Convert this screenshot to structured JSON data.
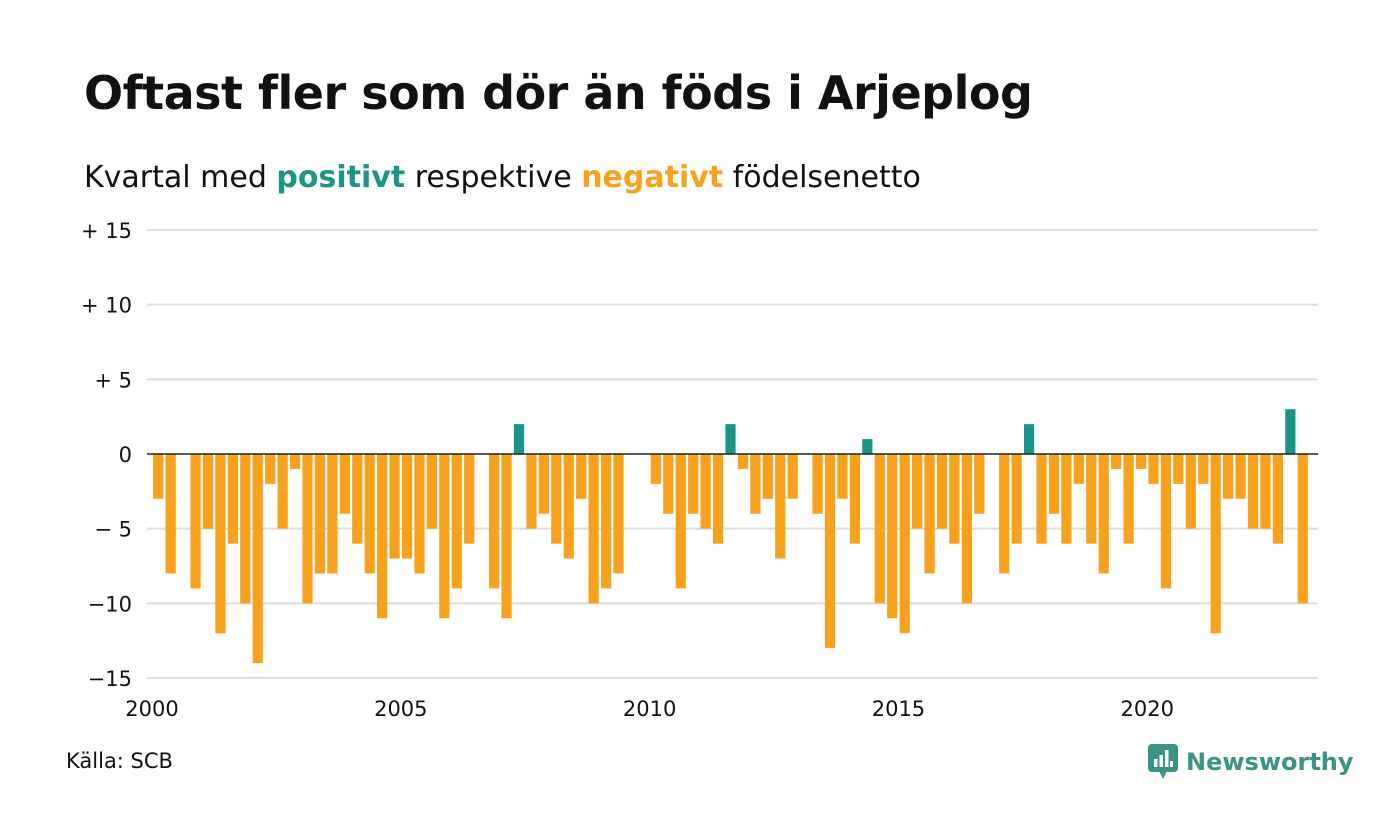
{
  "header": {
    "title": "Oftast fler som dör än föds i Arjeplog",
    "subtitle_prefix": "Kvartal med ",
    "subtitle_positive": "positivt",
    "subtitle_middle": " respektive ",
    "subtitle_negative": "negativt",
    "subtitle_suffix": " födelsenetto"
  },
  "footer": {
    "source": "Källa: SCB",
    "brand": "Newsworthy"
  },
  "colors": {
    "positive": "#1b9587",
    "negative": "#f7a11d",
    "grid": "#dddddd",
    "brand": "#3a9385",
    "text": "#111111"
  },
  "icons": {
    "logo": "chart-speech-bubble-icon"
  },
  "chart_data": {
    "type": "bar",
    "title": "Oftast fler som dör än föds i Arjeplog",
    "ylim": [
      -15,
      15
    ],
    "yticks": [
      15,
      10,
      5,
      0,
      -5,
      -10,
      -15
    ],
    "ytick_labels": [
      "+ 15",
      "+ 10",
      "+  5",
      "0",
      "− 5",
      "−10",
      "−15"
    ],
    "xticks": [
      2000,
      2005,
      2010,
      2015,
      2020
    ],
    "xtick_labels": [
      "2000",
      "2005",
      "2010",
      "2015",
      "2020"
    ],
    "xlim": [
      2000,
      2023.25
    ],
    "grid": true,
    "legend": "none",
    "start_year": 2000,
    "periods_per_year": 4,
    "values": [
      -3,
      -8,
      0,
      -9,
      -5,
      -12,
      -6,
      -10,
      -14,
      -2,
      -5,
      -1,
      -10,
      -8,
      -8,
      -4,
      -6,
      -8,
      -11,
      -7,
      -7,
      -8,
      -5,
      -11,
      -9,
      -6,
      0,
      -9,
      -11,
      2,
      -5,
      -4,
      -6,
      -7,
      -3,
      -10,
      -9,
      -8,
      0,
      0,
      -2,
      -4,
      -9,
      -4,
      -5,
      -6,
      2,
      -1,
      -4,
      -3,
      -7,
      -3,
      0,
      -4,
      -13,
      -3,
      -6,
      1,
      -10,
      -11,
      -12,
      -5,
      -8,
      -5,
      -6,
      -10,
      -4,
      0,
      -8,
      -6,
      2,
      -6,
      -4,
      -6,
      -2,
      -6,
      -8,
      -1,
      -6,
      -1,
      -2,
      -9,
      -2,
      -5,
      -2,
      -12,
      -3,
      -3,
      -5,
      -5,
      -6,
      3,
      -10
    ]
  }
}
